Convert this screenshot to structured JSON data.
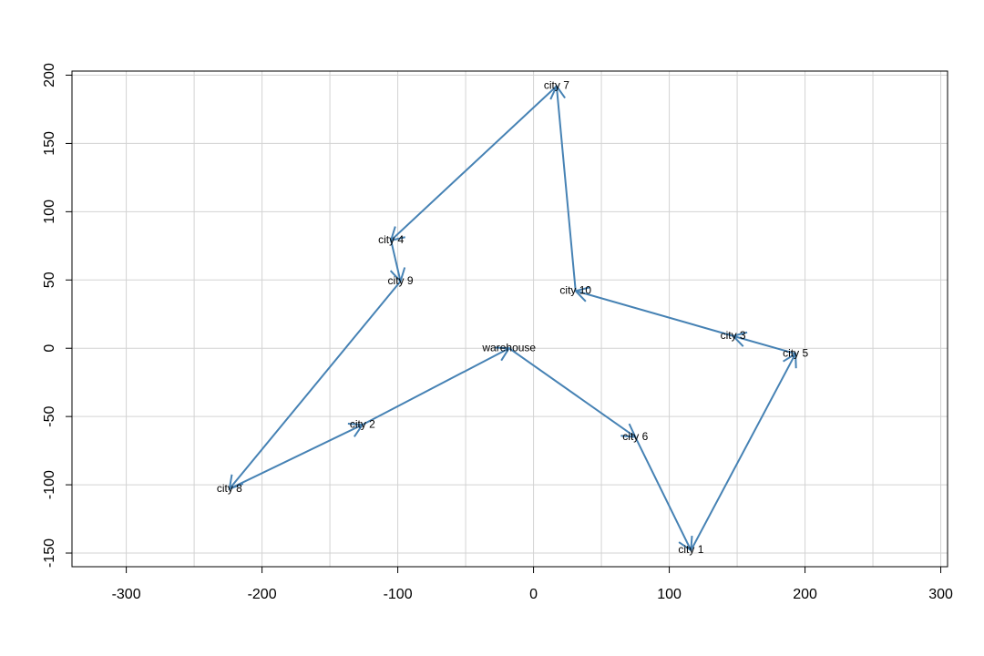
{
  "chart_data": {
    "type": "line",
    "title": "",
    "xlabel": "",
    "ylabel": "",
    "xlim": [
      -340,
      305
    ],
    "ylim": [
      -160,
      203
    ],
    "x_ticks": [
      -300,
      -200,
      -100,
      0,
      100,
      200,
      300
    ],
    "y_ticks": [
      -150,
      -100,
      -50,
      0,
      50,
      100,
      150,
      200
    ],
    "grid": true,
    "grid_x": [
      -300,
      -250,
      -200,
      -150,
      -100,
      -50,
      0,
      50,
      100,
      150,
      200,
      250,
      300
    ],
    "grid_y": [
      -150,
      -100,
      -50,
      0,
      50,
      100,
      150,
      200
    ],
    "points": [
      {
        "label": "warehouse",
        "x": -18,
        "y": 0
      },
      {
        "label": "city 1",
        "x": 116,
        "y": -148
      },
      {
        "label": "city 2",
        "x": -126,
        "y": -56
      },
      {
        "label": "city 3",
        "x": 147,
        "y": 9
      },
      {
        "label": "city 4",
        "x": -105,
        "y": 79
      },
      {
        "label": "city 5",
        "x": 193,
        "y": -4
      },
      {
        "label": "city 6",
        "x": 75,
        "y": -65
      },
      {
        "label": "city 7",
        "x": 17,
        "y": 192
      },
      {
        "label": "city 8",
        "x": -224,
        "y": -103
      },
      {
        "label": "city 9",
        "x": -98,
        "y": 49
      },
      {
        "label": "city 10",
        "x": 31,
        "y": 42
      }
    ],
    "route": [
      "warehouse",
      "city 6",
      "city 1",
      "city 5",
      "city 3",
      "city 10",
      "city 7",
      "city 4",
      "city 9",
      "city 8",
      "city 2",
      "warehouse"
    ],
    "colors": {
      "route": "#4682b4",
      "grid": "#d3d3d3",
      "axis": "#000000"
    }
  }
}
